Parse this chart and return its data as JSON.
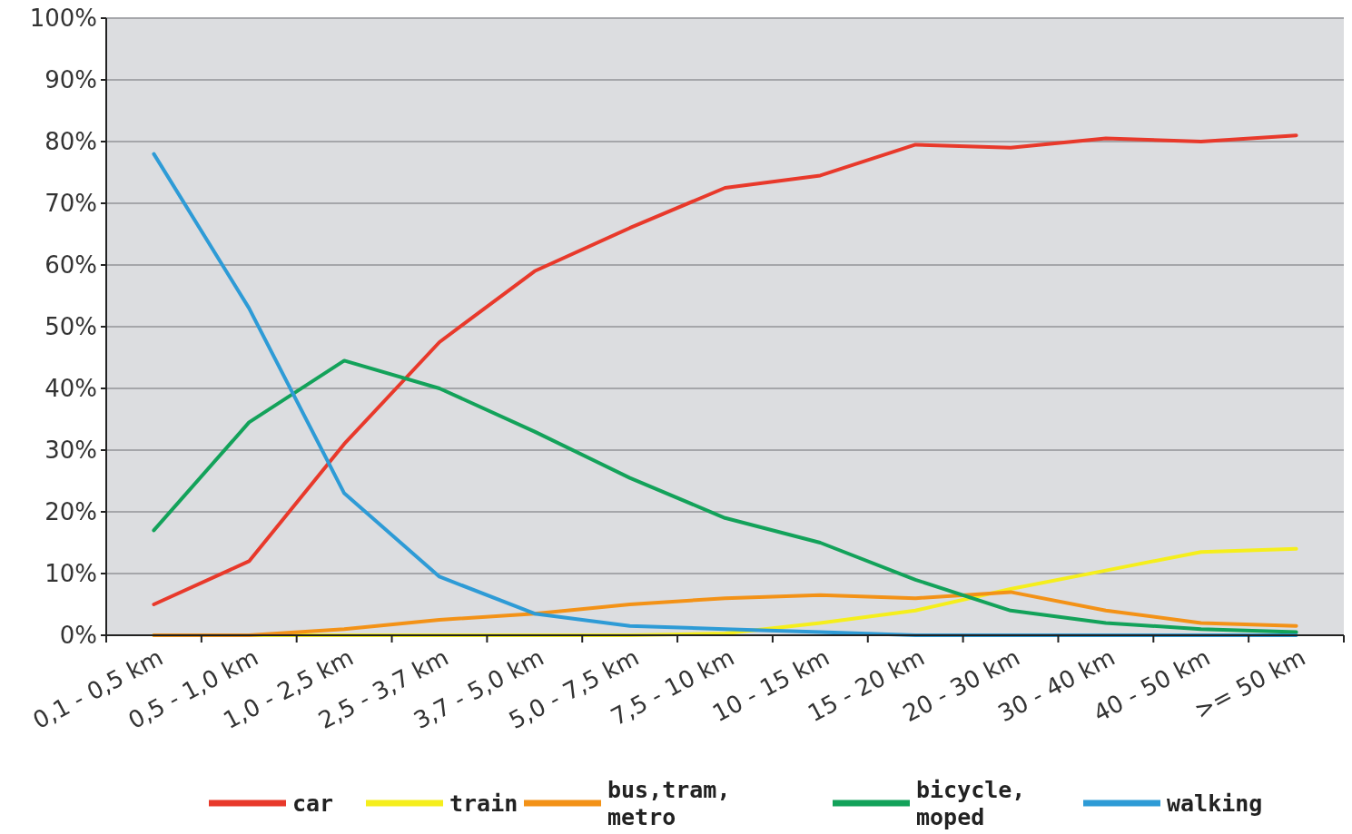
{
  "chart_data": {
    "type": "line",
    "categories": [
      "0,1 - 0,5 km",
      "0,5 - 1,0 km",
      "1,0 - 2,5 km",
      "2,5 - 3,7 km",
      "3,7 - 5,0 km",
      "5,0 - 7,5 km",
      "7,5 - 10 km",
      "10 - 15 km",
      "15 - 20 km",
      "20 - 30 km",
      "30 - 40 km",
      "40 - 50 km",
      ">= 50 km"
    ],
    "series": [
      {
        "name": "car",
        "color": "#e8392b",
        "values": [
          5,
          12,
          31,
          47.5,
          59,
          66,
          72.5,
          74.5,
          79.5,
          79,
          80.5,
          80,
          81
        ]
      },
      {
        "name": "train",
        "color": "#f5ee1c",
        "values": [
          0,
          0,
          0,
          0,
          0,
          0,
          0.3,
          2,
          4,
          7.5,
          10.5,
          13.5,
          14
        ]
      },
      {
        "name": "bus,tram,\nmetro",
        "color": "#f39217",
        "values": [
          0,
          0,
          1,
          2.5,
          3.5,
          5,
          6,
          6.5,
          6,
          7,
          4,
          2,
          1.5
        ]
      },
      {
        "name": "bicycle,\nmoped",
        "color": "#13a25a",
        "values": [
          17,
          34.5,
          44.5,
          40,
          33,
          25.5,
          19,
          15,
          9,
          4,
          2,
          1,
          0.5
        ]
      },
      {
        "name": "walking",
        "color": "#2e9bd6",
        "values": [
          78,
          53,
          23,
          9.5,
          3.5,
          1.5,
          1,
          0.5,
          0,
          0,
          0,
          0,
          0
        ]
      }
    ],
    "ylim": [
      0,
      100
    ],
    "yticks": [
      {
        "value": 0,
        "label": "0%"
      },
      {
        "value": 10,
        "label": "10%"
      },
      {
        "value": 20,
        "label": "20%"
      },
      {
        "value": 30,
        "label": "30%"
      },
      {
        "value": 40,
        "label": "40%"
      },
      {
        "value": 50,
        "label": "50%"
      },
      {
        "value": 60,
        "label": "60%"
      },
      {
        "value": 70,
        "label": "70%"
      },
      {
        "value": 80,
        "label": "80%"
      },
      {
        "value": 90,
        "label": "90%"
      },
      {
        "value": 100,
        "label": "100%"
      }
    ],
    "grid": "y",
    "legend": "bottom",
    "marker": "none",
    "line_style": "solid"
  }
}
